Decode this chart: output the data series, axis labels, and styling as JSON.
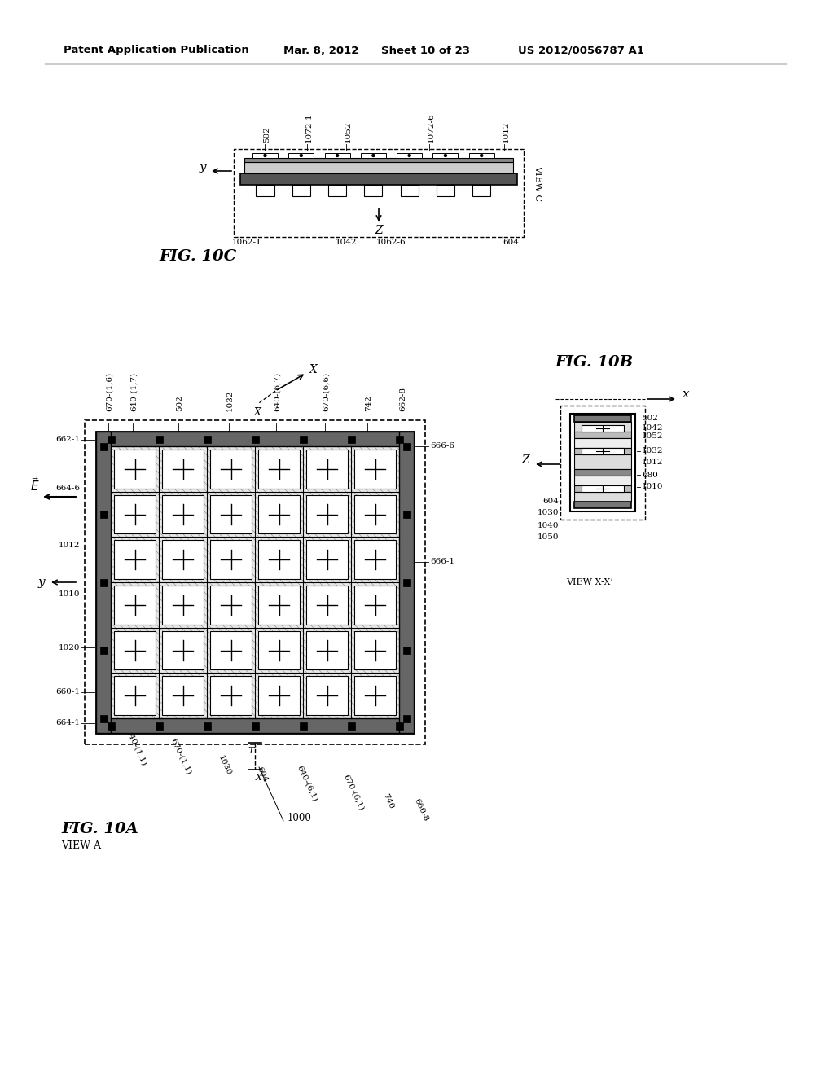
{
  "bg_color": "#ffffff",
  "header_text": "Patent Application Publication",
  "header_date": "Mar. 8, 2012",
  "header_sheet": "Sheet 10 of 23",
  "header_patent": "US 2012/0056787 A1",
  "fig10a_label": "FIG. 10A",
  "fig10b_label": "FIG. 10B",
  "fig10c_label": "FIG. 10C",
  "view_a_label": "VIEW A",
  "view_c_label": "VIEW C",
  "view_xx_label": "VIEW X-X’"
}
